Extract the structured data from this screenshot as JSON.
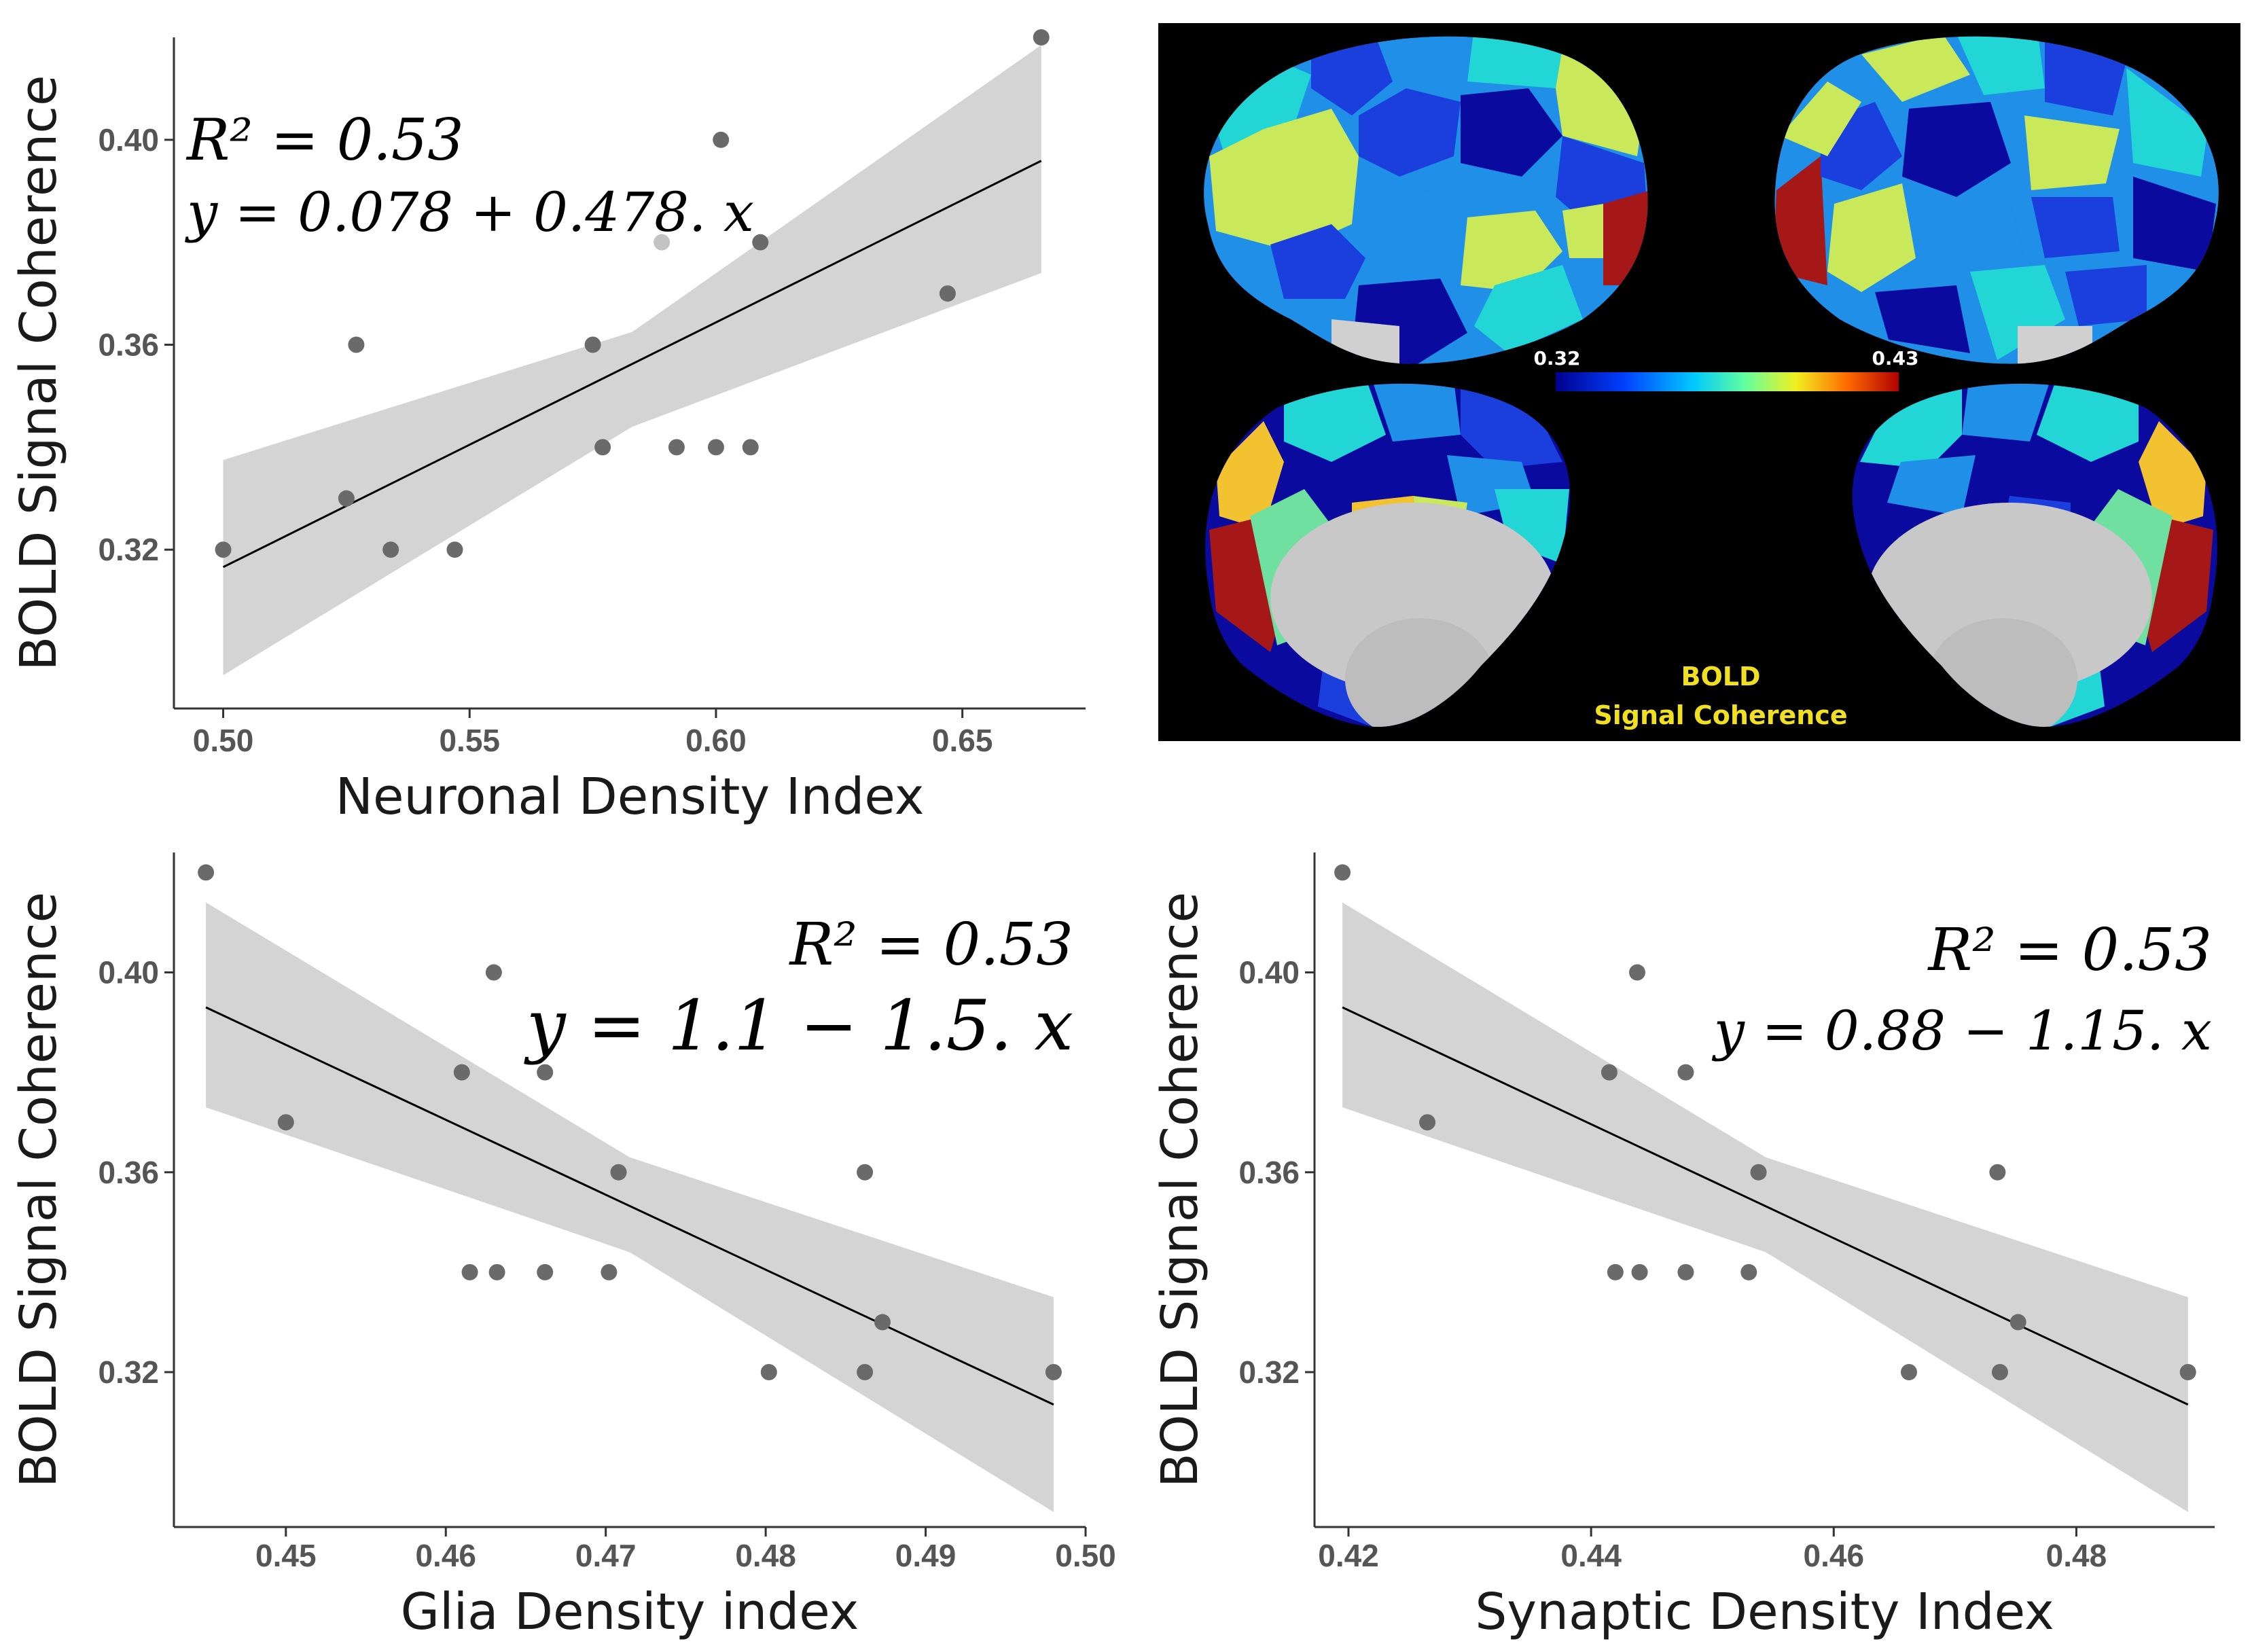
{
  "chart_data": [
    {
      "type": "scatter",
      "title": "",
      "xlabel": "Neuronal Density Index",
      "ylabel": "BOLD Signal Coherence",
      "xlim": [
        0.49,
        0.675
      ],
      "ylim": [
        0.289,
        0.42
      ],
      "xticks": [
        0.5,
        0.55,
        0.6,
        0.65
      ],
      "xtick_labels": [
        "0.50",
        "0.55",
        "0.60",
        "0.65"
      ],
      "yticks": [
        0.32,
        0.36,
        0.4
      ],
      "ytick_labels": [
        "0.32",
        "0.36",
        "0.40"
      ],
      "points": [
        {
          "x": 0.5,
          "y": 0.32
        },
        {
          "x": 0.525,
          "y": 0.33
        },
        {
          "x": 0.527,
          "y": 0.36
        },
        {
          "x": 0.534,
          "y": 0.32
        },
        {
          "x": 0.547,
          "y": 0.32
        },
        {
          "x": 0.575,
          "y": 0.36
        },
        {
          "x": 0.577,
          "y": 0.34
        },
        {
          "x": 0.589,
          "y": 0.38
        },
        {
          "x": 0.592,
          "y": 0.34
        },
        {
          "x": 0.6,
          "y": 0.34
        },
        {
          "x": 0.601,
          "y": 0.4
        },
        {
          "x": 0.607,
          "y": 0.34
        },
        {
          "x": 0.609,
          "y": 0.38
        },
        {
          "x": 0.647,
          "y": 0.37
        },
        {
          "x": 0.666,
          "y": 0.42
        }
      ],
      "fit": {
        "x0": 0.5,
        "y0": 0.3166,
        "x1": 0.666,
        "y1": 0.3959
      },
      "ci_upper": [
        {
          "x": 0.5,
          "y": 0.3375
        },
        {
          "x": 0.583,
          "y": 0.3625
        },
        {
          "x": 0.666,
          "y": 0.4185
        }
      ],
      "ci_lower": [
        {
          "x": 0.5,
          "y": 0.2955
        },
        {
          "x": 0.583,
          "y": 0.344
        },
        {
          "x": 0.666,
          "y": 0.374
        }
      ],
      "annotation": {
        "r2": "R² = 0.53",
        "equation": "y = 0.078 + 0.478. x",
        "position": "top-left"
      }
    },
    {
      "type": "scatter",
      "title": "",
      "xlabel": "Glia Density index",
      "ylabel": "BOLD Signal Coherence",
      "xlim": [
        0.443,
        0.5
      ],
      "ylim": [
        0.289,
        0.424
      ],
      "xticks": [
        0.45,
        0.46,
        0.47,
        0.48,
        0.49,
        0.5
      ],
      "xtick_labels": [
        "0.45",
        "0.46",
        "0.47",
        "0.48",
        "0.49",
        "0.50"
      ],
      "yticks": [
        0.32,
        0.36,
        0.4
      ],
      "ytick_labels": [
        "0.32",
        "0.36",
        "0.40"
      ],
      "points": [
        {
          "x": 0.445,
          "y": 0.42
        },
        {
          "x": 0.45,
          "y": 0.37
        },
        {
          "x": 0.461,
          "y": 0.38
        },
        {
          "x": 0.4615,
          "y": 0.34
        },
        {
          "x": 0.463,
          "y": 0.4
        },
        {
          "x": 0.4632,
          "y": 0.34
        },
        {
          "x": 0.4662,
          "y": 0.38
        },
        {
          "x": 0.4662,
          "y": 0.34
        },
        {
          "x": 0.4702,
          "y": 0.34
        },
        {
          "x": 0.4708,
          "y": 0.36
        },
        {
          "x": 0.4802,
          "y": 0.32
        },
        {
          "x": 0.4862,
          "y": 0.36
        },
        {
          "x": 0.4862,
          "y": 0.32
        },
        {
          "x": 0.4873,
          "y": 0.33
        },
        {
          "x": 0.498,
          "y": 0.32
        }
      ],
      "fit": {
        "x0": 0.445,
        "y0": 0.393,
        "x1": 0.498,
        "y1": 0.3135
      },
      "ci_upper": [
        {
          "x": 0.445,
          "y": 0.414
        },
        {
          "x": 0.4715,
          "y": 0.363
        },
        {
          "x": 0.498,
          "y": 0.335
        }
      ],
      "ci_lower": [
        {
          "x": 0.445,
          "y": 0.373
        },
        {
          "x": 0.4715,
          "y": 0.344
        },
        {
          "x": 0.498,
          "y": 0.292
        }
      ],
      "annotation": {
        "r2": "R² = 0.53",
        "equation": "y = 1.1 − 1.5. x",
        "position": "top-right"
      }
    },
    {
      "type": "scatter",
      "title": "",
      "xlabel": "Synaptic Density Index",
      "ylabel": "BOLD Signal Coherence",
      "xlim": [
        0.4172,
        0.4914
      ],
      "ylim": [
        0.289,
        0.424
      ],
      "xticks": [
        0.42,
        0.44,
        0.46,
        0.48
      ],
      "xtick_labels": [
        "0.42",
        "0.44",
        "0.46",
        "0.48"
      ],
      "yticks": [
        0.32,
        0.36,
        0.4
      ],
      "ytick_labels": [
        "0.32",
        "0.36",
        "0.40"
      ],
      "points": [
        {
          "x": 0.4195,
          "y": 0.42
        },
        {
          "x": 0.4265,
          "y": 0.37
        },
        {
          "x": 0.4415,
          "y": 0.38
        },
        {
          "x": 0.442,
          "y": 0.34
        },
        {
          "x": 0.4438,
          "y": 0.4
        },
        {
          "x": 0.444,
          "y": 0.34
        },
        {
          "x": 0.4478,
          "y": 0.38
        },
        {
          "x": 0.4478,
          "y": 0.34
        },
        {
          "x": 0.453,
          "y": 0.34
        },
        {
          "x": 0.4538,
          "y": 0.36
        },
        {
          "x": 0.4662,
          "y": 0.32
        },
        {
          "x": 0.4735,
          "y": 0.36
        },
        {
          "x": 0.4737,
          "y": 0.32
        },
        {
          "x": 0.4752,
          "y": 0.33
        },
        {
          "x": 0.4892,
          "y": 0.32
        }
      ],
      "fit": {
        "x0": 0.4195,
        "y0": 0.393,
        "x1": 0.4892,
        "y1": 0.3135
      },
      "ci_upper": [
        {
          "x": 0.4195,
          "y": 0.414
        },
        {
          "x": 0.4544,
          "y": 0.363
        },
        {
          "x": 0.4892,
          "y": 0.335
        }
      ],
      "ci_lower": [
        {
          "x": 0.4195,
          "y": 0.373
        },
        {
          "x": 0.4544,
          "y": 0.344
        },
        {
          "x": 0.4892,
          "y": 0.292
        }
      ],
      "annotation": {
        "r2": "R² = 0.53",
        "equation": "y = 0.88 − 1.15. x",
        "position": "top-right"
      }
    }
  ],
  "brain_map": {
    "colorbar_min": "0.32",
    "colorbar_max": "0.43",
    "caption_line1": "BOLD",
    "caption_line2": "Signal Coherence",
    "colormap": [
      "#0a0a9e",
      "#1a3fdc",
      "#1f8fe8",
      "#22d6d6",
      "#c9e85a",
      "#f2c230",
      "#e0451e",
      "#a61818"
    ],
    "background": "#000000"
  },
  "colors": {
    "point": "#6a6a6a",
    "ci_band": "#d4d4d4",
    "fit_line": "#000000",
    "axis": "#333333",
    "tick_label": "#555555",
    "axis_title": "#1a1a1a"
  }
}
